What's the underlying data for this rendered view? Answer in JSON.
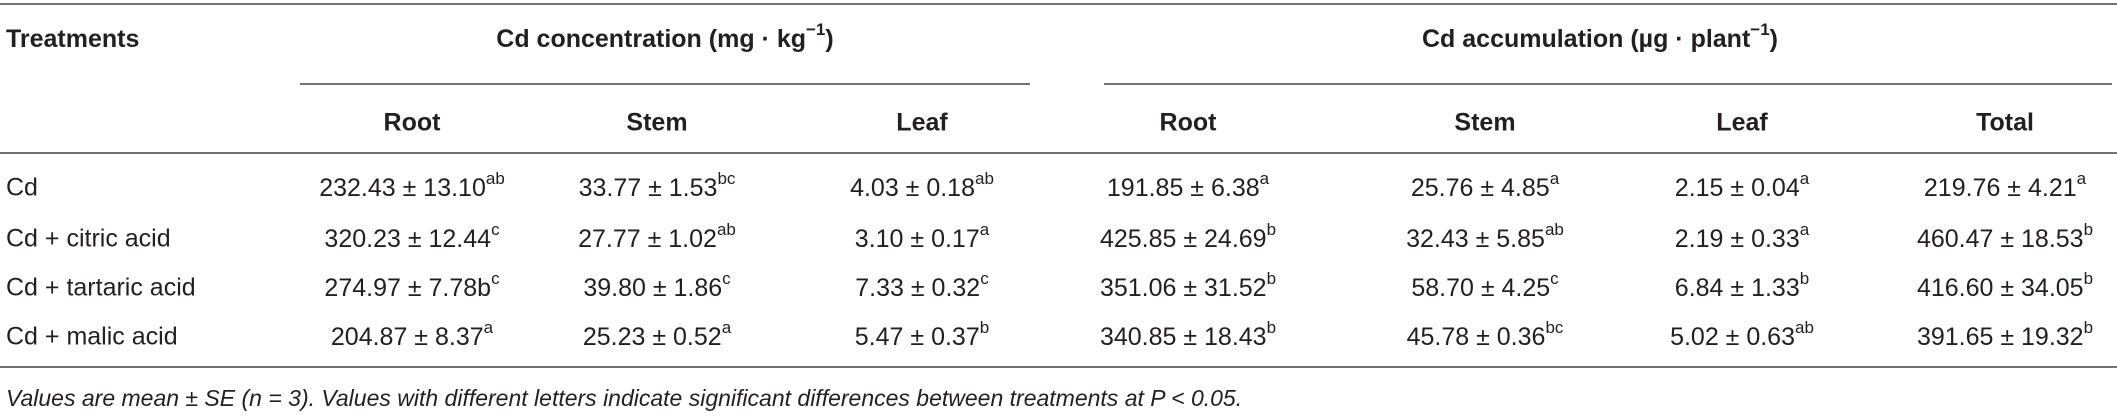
{
  "table": {
    "group_headers": [
      {
        "text": "Treatments"
      },
      {
        "text": "Cd concentration (mg · kg",
        "sup": "−1",
        "tail": ")"
      },
      {
        "text": "Cd accumulation (µg · plant",
        "sup": "−1",
        "tail": ")"
      }
    ],
    "sub_headers": [
      "Root",
      "Stem",
      "Leaf",
      "Root",
      "Stem",
      "Leaf",
      "Total"
    ],
    "rows": [
      {
        "treatment": "Cd",
        "cells": [
          {
            "text": "232.43 ± 13.10",
            "sup": "ab"
          },
          {
            "text": "33.77 ± 1.53",
            "sup": "bc"
          },
          {
            "text": "4.03 ± 0.18",
            "sup": "ab"
          },
          {
            "text": "191.85 ± 6.38",
            "sup": "a"
          },
          {
            "text": "25.76 ± 4.85",
            "sup": "a"
          },
          {
            "text": "2.15 ± 0.04",
            "sup": "a"
          },
          {
            "text": "219.76 ± 4.21",
            "sup": "a"
          }
        ]
      },
      {
        "treatment": "Cd + citric acid",
        "cells": [
          {
            "text": "320.23 ± 12.44",
            "sup": "c"
          },
          {
            "text": "27.77 ± 1.02",
            "sup": "ab"
          },
          {
            "text": "3.10 ± 0.17",
            "sup": "a"
          },
          {
            "text": "425.85 ± 24.69",
            "sup": "b"
          },
          {
            "text": "32.43 ± 5.85",
            "sup": "ab"
          },
          {
            "text": "2.19 ± 0.33",
            "sup": "a"
          },
          {
            "text": "460.47 ± 18.53",
            "sup": "b"
          }
        ]
      },
      {
        "treatment": "Cd + tartaric acid",
        "cells": [
          {
            "text": "274.97 ± 7.78b",
            "sup": "c"
          },
          {
            "text": "39.80 ± 1.86",
            "sup": "c"
          },
          {
            "text": "7.33 ± 0.32",
            "sup": "c"
          },
          {
            "text": "351.06 ± 31.52",
            "sup": "b"
          },
          {
            "text": "58.70 ± 4.25",
            "sup": "c"
          },
          {
            "text": "6.84 ± 1.33",
            "sup": "b"
          },
          {
            "text": "416.60 ± 34.05",
            "sup": "b"
          }
        ]
      },
      {
        "treatment": "Cd + malic acid",
        "cells": [
          {
            "text": "204.87 ± 8.37",
            "sup": "a"
          },
          {
            "text": "25.23 ± 0.52",
            "sup": "a"
          },
          {
            "text": "5.47 ± 0.37",
            "sup": "b"
          },
          {
            "text": "340.85 ± 18.43",
            "sup": "b"
          },
          {
            "text": "45.78 ± 0.36",
            "sup": "bc"
          },
          {
            "text": "5.02 ± 0.63",
            "sup": "ab"
          },
          {
            "text": "391.65 ± 19.32",
            "sup": "b"
          }
        ]
      }
    ]
  },
  "footnote": "Values are mean ± SE (n = 3). Values with different letters indicate significant differences between treatments at P < 0.05."
}
